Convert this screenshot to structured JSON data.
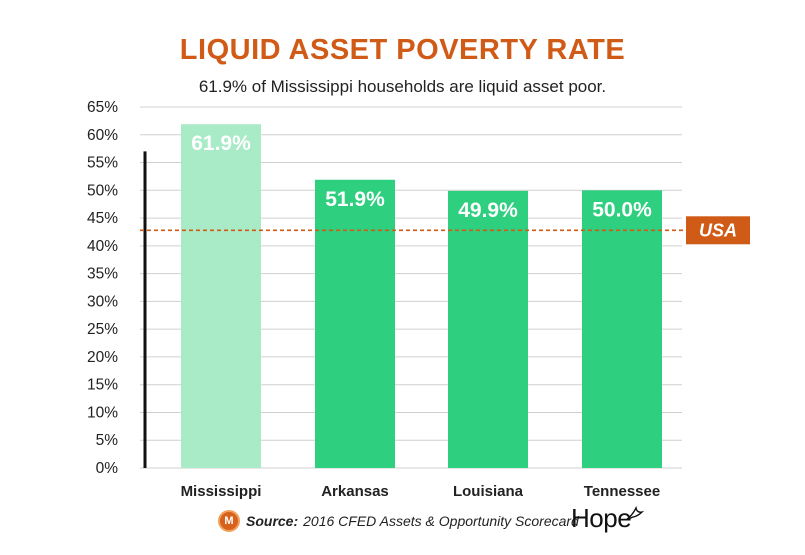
{
  "chart_data": {
    "type": "bar",
    "title": "LIQUID ASSET POVERTY RATE",
    "subtitle": "61.9% of Mississippi households are liquid asset poor.",
    "categories": [
      "Mississippi",
      "Arkansas",
      "Louisiana",
      "Tennessee"
    ],
    "values": [
      61.9,
      51.9,
      49.9,
      50.0
    ],
    "data_labels": [
      "61.9%",
      "51.9%",
      "49.9%",
      "50.0%"
    ],
    "bar_colors": [
      "#a9eac7",
      "#2fcf80",
      "#2fcf80",
      "#2fcf80"
    ],
    "ylim": [
      0,
      65
    ],
    "y_ticks": [
      0,
      5,
      10,
      15,
      20,
      25,
      30,
      35,
      40,
      45,
      50,
      55,
      60,
      65
    ],
    "y_tick_labels": [
      "0%",
      "5%",
      "10%",
      "15%",
      "20%",
      "25%",
      "30%",
      "35%",
      "40%",
      "45%",
      "50%",
      "55%",
      "60%",
      "65%"
    ],
    "grid": true,
    "reference_line": {
      "label": "USA",
      "value": 42.8,
      "color": "#cf5b17"
    }
  },
  "source": {
    "label": "Source:",
    "text": "2016 CFED Assets & Opportunity Scorecard"
  },
  "brand": {
    "logo_letter": "M",
    "wordmark": "Hope"
  },
  "colors": {
    "title": "#cf5b17",
    "accent": "#2fcf80",
    "highlight": "#a9eac7"
  }
}
